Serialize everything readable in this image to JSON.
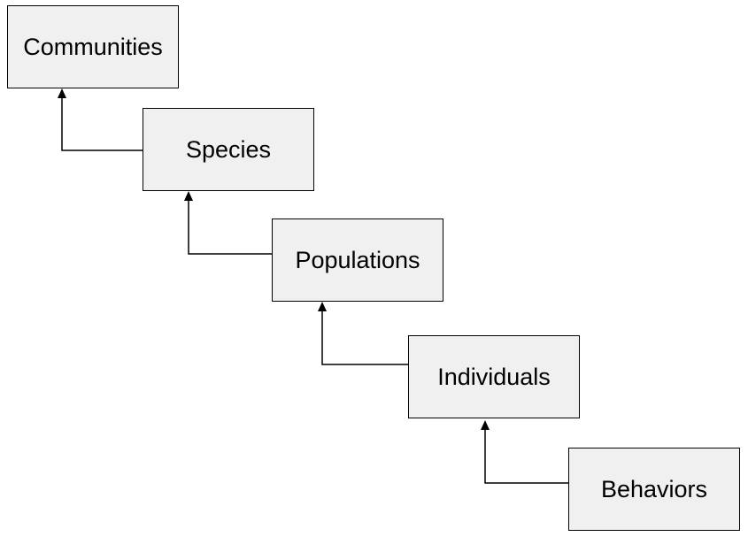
{
  "diagram": {
    "boxes": [
      {
        "id": "communities",
        "label": "Communities"
      },
      {
        "id": "species",
        "label": "Species"
      },
      {
        "id": "populations",
        "label": "Populations"
      },
      {
        "id": "individuals",
        "label": "Individuals"
      },
      {
        "id": "behaviors",
        "label": "Behaviors"
      }
    ],
    "edges": [
      {
        "from": "species",
        "to": "communities"
      },
      {
        "from": "populations",
        "to": "species"
      },
      {
        "from": "individuals",
        "to": "populations"
      },
      {
        "from": "behaviors",
        "to": "individuals"
      }
    ],
    "colors": {
      "box_fill": "#f0f0f0",
      "stroke": "#000000",
      "text": "#000000"
    }
  }
}
